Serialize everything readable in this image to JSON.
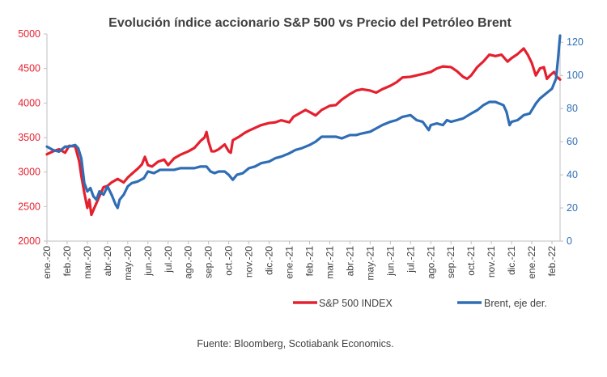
{
  "chart_data": {
    "type": "line",
    "title": "Evolución índice accionario S&P 500 vs Precio del Petróleo Brent",
    "source": "Fuente: Bloomberg, Scotiabank Economics.",
    "left_axis": {
      "min": 2000,
      "max": 5000,
      "ticks": [
        "2000",
        "2500",
        "3000",
        "3500",
        "4000",
        "4500",
        "5000"
      ],
      "color": "#e5202e"
    },
    "right_axis": {
      "min": 0,
      "max": 125,
      "ticks": [
        "0",
        "20",
        "40",
        "60",
        "80",
        "100",
        "120"
      ],
      "color": "#2f6db5"
    },
    "x_axis": {
      "min": 0,
      "max": 25.4,
      "ticks": [
        "ene.-20",
        "feb.-20",
        "mar.-20",
        "abr.-20",
        "may.-20",
        "jun.-20",
        "jul.-20",
        "ago.-20",
        "sep.-20",
        "oct.-20",
        "nov.-20",
        "dic.-20",
        "ene.-21",
        "feb.-21",
        "mar.-21",
        "abr.-21",
        "may.-21",
        "jun.-21",
        "jul.-21",
        "ago.-21",
        "sep.-21",
        "oct.-21",
        "nov.-21",
        "dic.-21",
        "ene.-22",
        "feb.-22"
      ]
    },
    "legend_position": "bottom-right",
    "series": [
      {
        "name": "S&P 500 INDEX",
        "axis": "left",
        "color": "#e5202e",
        "points": [
          [
            0,
            3257
          ],
          [
            0.3,
            3300
          ],
          [
            0.6,
            3330
          ],
          [
            0.9,
            3280
          ],
          [
            1.1,
            3380
          ],
          [
            1.4,
            3370
          ],
          [
            1.6,
            3150
          ],
          [
            1.7,
            2950
          ],
          [
            1.85,
            2700
          ],
          [
            2.0,
            2480
          ],
          [
            2.1,
            2600
          ],
          [
            2.2,
            2380
          ],
          [
            2.3,
            2450
          ],
          [
            2.45,
            2550
          ],
          [
            2.6,
            2650
          ],
          [
            2.8,
            2780
          ],
          [
            3.0,
            2800
          ],
          [
            3.2,
            2850
          ],
          [
            3.5,
            2900
          ],
          [
            3.8,
            2850
          ],
          [
            4.0,
            2920
          ],
          [
            4.3,
            3000
          ],
          [
            4.5,
            3050
          ],
          [
            4.7,
            3110
          ],
          [
            4.85,
            3220
          ],
          [
            5.0,
            3100
          ],
          [
            5.2,
            3080
          ],
          [
            5.5,
            3150
          ],
          [
            5.8,
            3180
          ],
          [
            6.0,
            3100
          ],
          [
            6.3,
            3200
          ],
          [
            6.6,
            3250
          ],
          [
            7.0,
            3300
          ],
          [
            7.3,
            3350
          ],
          [
            7.6,
            3450
          ],
          [
            7.8,
            3500
          ],
          [
            7.9,
            3580
          ],
          [
            8.0,
            3440
          ],
          [
            8.15,
            3300
          ],
          [
            8.3,
            3300
          ],
          [
            8.5,
            3330
          ],
          [
            8.8,
            3400
          ],
          [
            9.0,
            3300
          ],
          [
            9.1,
            3280
          ],
          [
            9.2,
            3460
          ],
          [
            9.5,
            3510
          ],
          [
            9.8,
            3570
          ],
          [
            10.0,
            3600
          ],
          [
            10.3,
            3640
          ],
          [
            10.6,
            3680
          ],
          [
            11.0,
            3710
          ],
          [
            11.3,
            3720
          ],
          [
            11.6,
            3750
          ],
          [
            12.0,
            3720
          ],
          [
            12.2,
            3800
          ],
          [
            12.5,
            3850
          ],
          [
            12.8,
            3900
          ],
          [
            13.0,
            3870
          ],
          [
            13.3,
            3820
          ],
          [
            13.6,
            3900
          ],
          [
            14.0,
            3960
          ],
          [
            14.3,
            3970
          ],
          [
            14.6,
            4050
          ],
          [
            15.0,
            4130
          ],
          [
            15.3,
            4180
          ],
          [
            15.6,
            4200
          ],
          [
            16.0,
            4180
          ],
          [
            16.3,
            4150
          ],
          [
            16.6,
            4200
          ],
          [
            17.0,
            4250
          ],
          [
            17.3,
            4300
          ],
          [
            17.6,
            4370
          ],
          [
            18.0,
            4380
          ],
          [
            18.3,
            4400
          ],
          [
            18.6,
            4420
          ],
          [
            19.0,
            4450
          ],
          [
            19.3,
            4500
          ],
          [
            19.6,
            4530
          ],
          [
            20.0,
            4520
          ],
          [
            20.3,
            4460
          ],
          [
            20.6,
            4380
          ],
          [
            20.8,
            4350
          ],
          [
            21.0,
            4400
          ],
          [
            21.3,
            4520
          ],
          [
            21.6,
            4600
          ],
          [
            21.9,
            4700
          ],
          [
            22.2,
            4680
          ],
          [
            22.5,
            4700
          ],
          [
            22.8,
            4600
          ],
          [
            23.0,
            4650
          ],
          [
            23.3,
            4710
          ],
          [
            23.6,
            4790
          ],
          [
            23.8,
            4700
          ],
          [
            24.0,
            4580
          ],
          [
            24.2,
            4400
          ],
          [
            24.4,
            4500
          ],
          [
            24.6,
            4520
          ],
          [
            24.75,
            4350
          ],
          [
            24.9,
            4400
          ],
          [
            25.1,
            4450
          ],
          [
            25.25,
            4380
          ],
          [
            25.4,
            4340
          ]
        ]
      },
      {
        "name": "Brent, eje der.",
        "axis": "right",
        "color": "#2f6db5",
        "points": [
          [
            0,
            57
          ],
          [
            0.3,
            55
          ],
          [
            0.6,
            54
          ],
          [
            0.9,
            57
          ],
          [
            1.1,
            57
          ],
          [
            1.4,
            58
          ],
          [
            1.55,
            56
          ],
          [
            1.7,
            50
          ],
          [
            1.85,
            35
          ],
          [
            2.0,
            30
          ],
          [
            2.15,
            32
          ],
          [
            2.3,
            27
          ],
          [
            2.45,
            25
          ],
          [
            2.6,
            30
          ],
          [
            2.8,
            28
          ],
          [
            3.0,
            33
          ],
          [
            3.2,
            28
          ],
          [
            3.4,
            22
          ],
          [
            3.5,
            20
          ],
          [
            3.6,
            25
          ],
          [
            3.8,
            28
          ],
          [
            4.0,
            33
          ],
          [
            4.2,
            35
          ],
          [
            4.5,
            36
          ],
          [
            4.8,
            38
          ],
          [
            5.0,
            42
          ],
          [
            5.3,
            41
          ],
          [
            5.6,
            43
          ],
          [
            6.0,
            43
          ],
          [
            6.3,
            43
          ],
          [
            6.6,
            44
          ],
          [
            7.0,
            44
          ],
          [
            7.3,
            44
          ],
          [
            7.6,
            45
          ],
          [
            7.9,
            45
          ],
          [
            8.1,
            42
          ],
          [
            8.3,
            41
          ],
          [
            8.5,
            42
          ],
          [
            8.8,
            42
          ],
          [
            9.0,
            40
          ],
          [
            9.2,
            37
          ],
          [
            9.4,
            40
          ],
          [
            9.7,
            41
          ],
          [
            10.0,
            44
          ],
          [
            10.3,
            45
          ],
          [
            10.6,
            47
          ],
          [
            11.0,
            48
          ],
          [
            11.3,
            50
          ],
          [
            11.6,
            51
          ],
          [
            12.0,
            53
          ],
          [
            12.3,
            55
          ],
          [
            12.6,
            56
          ],
          [
            13.0,
            58
          ],
          [
            13.3,
            60
          ],
          [
            13.6,
            63
          ],
          [
            14.0,
            63
          ],
          [
            14.3,
            63
          ],
          [
            14.6,
            62
          ],
          [
            15.0,
            64
          ],
          [
            15.3,
            64
          ],
          [
            15.6,
            65
          ],
          [
            16.0,
            66
          ],
          [
            16.3,
            68
          ],
          [
            16.6,
            70
          ],
          [
            17.0,
            72
          ],
          [
            17.3,
            73
          ],
          [
            17.6,
            75
          ],
          [
            18.0,
            76
          ],
          [
            18.3,
            73
          ],
          [
            18.6,
            72
          ],
          [
            18.9,
            67
          ],
          [
            19.0,
            70
          ],
          [
            19.3,
            71
          ],
          [
            19.6,
            70
          ],
          [
            19.8,
            73
          ],
          [
            20.0,
            72
          ],
          [
            20.3,
            73
          ],
          [
            20.6,
            74
          ],
          [
            21.0,
            77
          ],
          [
            21.3,
            79
          ],
          [
            21.6,
            82
          ],
          [
            21.9,
            84
          ],
          [
            22.2,
            84
          ],
          [
            22.4,
            83
          ],
          [
            22.6,
            82
          ],
          [
            22.75,
            78
          ],
          [
            22.9,
            70
          ],
          [
            23.0,
            72
          ],
          [
            23.3,
            73
          ],
          [
            23.6,
            76
          ],
          [
            23.9,
            77
          ],
          [
            24.0,
            79
          ],
          [
            24.2,
            83
          ],
          [
            24.4,
            86
          ],
          [
            24.6,
            88
          ],
          [
            24.8,
            90
          ],
          [
            25.0,
            92
          ],
          [
            25.1,
            95
          ],
          [
            25.2,
            98
          ],
          [
            25.3,
            110
          ],
          [
            25.4,
            124
          ]
        ]
      }
    ]
  }
}
